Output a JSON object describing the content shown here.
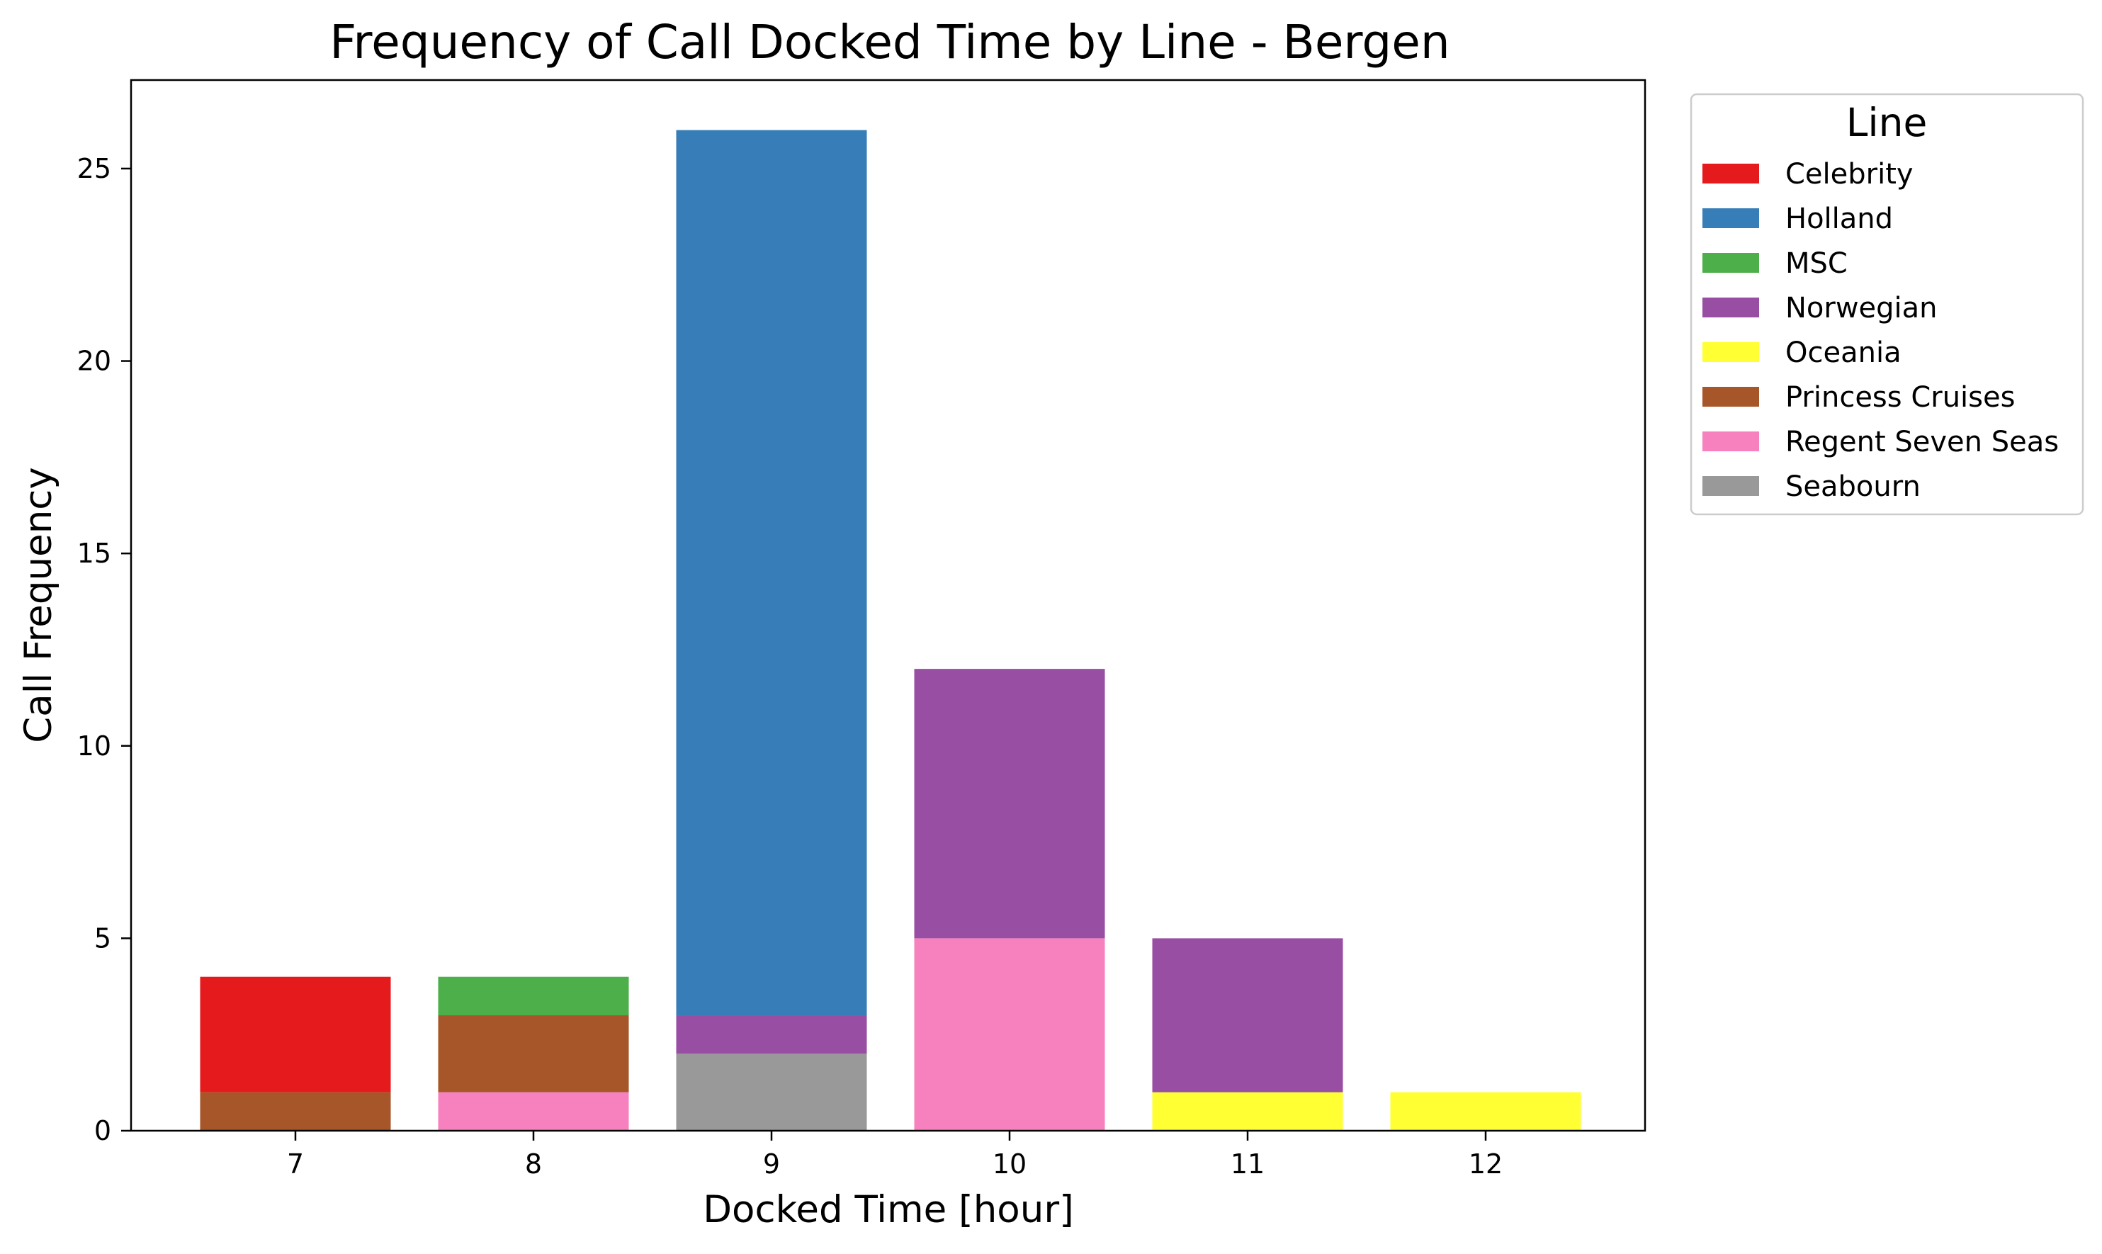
{
  "chart_data": {
    "type": "bar",
    "stacked": true,
    "title": "Frequency of Call Docked Time by Line - Bergen",
    "xlabel": "Docked Time [hour]",
    "ylabel": "Call Frequency",
    "categories": [
      "7",
      "8",
      "9",
      "10",
      "11",
      "12"
    ],
    "ylim": [
      0,
      27.3
    ],
    "yticks": [
      0,
      5,
      10,
      15,
      20,
      25
    ],
    "legend": {
      "title": "Line",
      "placement": "outside-top-right"
    },
    "series": [
      {
        "name": "Seabourn",
        "color": "#999999",
        "values": [
          0,
          0,
          2,
          0,
          0,
          0
        ]
      },
      {
        "name": "Regent Seven Seas",
        "color": "#f781bf",
        "values": [
          0,
          1,
          0,
          5,
          0,
          0
        ]
      },
      {
        "name": "Princess Cruises",
        "color": "#a65628",
        "values": [
          1,
          2,
          0,
          0,
          0,
          0
        ]
      },
      {
        "name": "Oceania",
        "color": "#ffff33",
        "values": [
          0,
          0,
          0,
          0,
          1,
          1
        ]
      },
      {
        "name": "Norwegian",
        "color": "#984ea3",
        "values": [
          0,
          0,
          1,
          7,
          4,
          0
        ]
      },
      {
        "name": "MSC",
        "color": "#4daf4a",
        "values": [
          0,
          1,
          0,
          0,
          0,
          0
        ]
      },
      {
        "name": "Holland",
        "color": "#377eb8",
        "values": [
          0,
          0,
          23,
          0,
          0,
          0
        ]
      },
      {
        "name": "Celebrity",
        "color": "#e41a1c",
        "values": [
          3,
          0,
          0,
          0,
          0,
          0
        ]
      }
    ],
    "legend_order": [
      "Celebrity",
      "Holland",
      "MSC",
      "Norwegian",
      "Oceania",
      "Princess Cruises",
      "Regent Seven Seas",
      "Seabourn"
    ]
  }
}
